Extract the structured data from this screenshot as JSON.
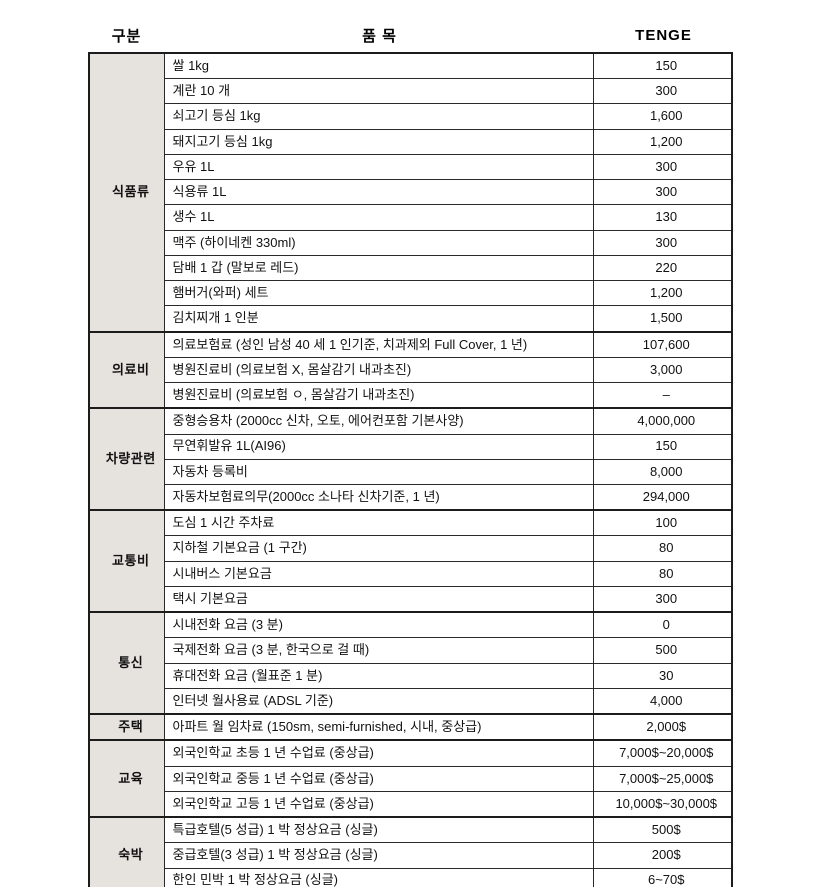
{
  "table": {
    "headers": {
      "category": "구분",
      "item": "품 목",
      "price": "TENGE"
    },
    "groups": [
      {
        "category": "식품류",
        "rows": [
          {
            "item": "쌀 1kg",
            "price": "150"
          },
          {
            "item": "계란 10 개",
            "price": "300"
          },
          {
            "item": "쇠고기 등심 1kg",
            "price": "1,600"
          },
          {
            "item": "돼지고기 등심 1kg",
            "price": "1,200"
          },
          {
            "item": "우유 1L",
            "price": "300"
          },
          {
            "item": "식용류 1L",
            "price": "300"
          },
          {
            "item": "생수 1L",
            "price": "130"
          },
          {
            "item": "맥주 (하이네켄 330ml)",
            "price": "300"
          },
          {
            "item": "담배 1 갑 (말보로 레드)",
            "price": "220"
          },
          {
            "item": "햄버거(와퍼) 세트",
            "price": "1,200"
          },
          {
            "item": "김치찌개 1 인분",
            "price": "1,500"
          }
        ]
      },
      {
        "category": "의료비",
        "rows": [
          {
            "item": "의료보험료 (성인 남성 40 세 1 인기준, 치과제외 Full Cover, 1 년)",
            "price": "107,600"
          },
          {
            "item": "병원진료비 (의료보험 X, 몸살감기 내과초진)",
            "price": "3,000"
          },
          {
            "item": "병원진료비 (의료보험 ㅇ, 몸살감기 내과초진)",
            "price": "–"
          }
        ]
      },
      {
        "category": "차량관련",
        "rows": [
          {
            "item": "중형승용차 (2000cc 신차, 오토, 에어컨포함 기본사양)",
            "price": "4,000,000"
          },
          {
            "item": "무연휘발유 1L(AI96)",
            "price": "150"
          },
          {
            "item": "자동차 등록비",
            "price": "8,000"
          },
          {
            "item": "자동차보험료의무(2000cc 소나타 신차기준, 1 년)",
            "price": "294,000"
          }
        ]
      },
      {
        "category": "교통비",
        "rows": [
          {
            "item": "도심 1 시간 주차료",
            "price": "100"
          },
          {
            "item": "지하철 기본요금 (1 구간)",
            "price": "80"
          },
          {
            "item": "시내버스 기본요금",
            "price": "80"
          },
          {
            "item": "택시 기본요금",
            "price": "300"
          }
        ]
      },
      {
        "category": "통신",
        "rows": [
          {
            "item": "시내전화 요금 (3 분)",
            "price": "0"
          },
          {
            "item": "국제전화 요금 (3 분, 한국으로 걸 때)",
            "price": "500"
          },
          {
            "item": "휴대전화 요금 (월표준 1 분)",
            "price": "30"
          },
          {
            "item": "인터넷 월사용료 (ADSL 기준)",
            "price": "4,000"
          }
        ]
      },
      {
        "category": "주택",
        "rows": [
          {
            "item": "아파트 월 임차료 (150sm, semi-furnished, 시내, 중상급)",
            "price": "2,000$"
          }
        ]
      },
      {
        "category": "교육",
        "rows": [
          {
            "item": "외국인학교 초등 1 년 수업료 (중상급)",
            "price": "7,000$~20,000$"
          },
          {
            "item": "외국인학교 중등 1 년 수업료 (중상급)",
            "price": "7,000$~25,000$"
          },
          {
            "item": "외국인학교 고등 1 년 수업료 (중상급)",
            "price": "10,000$~30,000$"
          }
        ]
      },
      {
        "category": "숙박",
        "rows": [
          {
            "item": "특급호텔(5 성급) 1 박 정상요금 (싱글)",
            "price": "500$"
          },
          {
            "item": "중급호텔(3 성급) 1 박 정상요금 (싱글)",
            "price": "200$"
          },
          {
            "item": "한인 민박 1 박 정상요금 (싱글)",
            "price": "6~70$"
          }
        ]
      }
    ]
  },
  "colors": {
    "category_bg": "#e6e2de",
    "border": "#1c1c1c"
  }
}
